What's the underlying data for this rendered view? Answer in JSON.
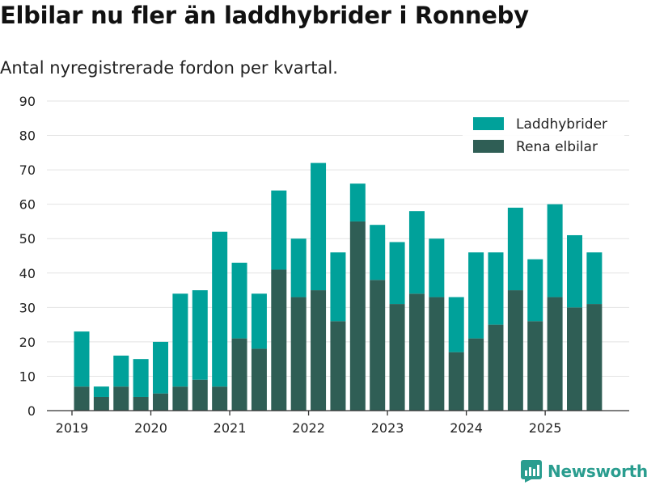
{
  "title": "Elbilar nu fler än laddhybrider i Ronneby",
  "subtitle": "Antal nyregistrerade fordon per kvartal.",
  "brand": "Newsworthy",
  "colors": {
    "laddhybrider": "#00a19a",
    "rena_elbilar": "#2f5e55",
    "grid": "#e3e3e3",
    "axis": "#333333",
    "brand": "#2a9d8f"
  },
  "chart_data": {
    "type": "bar",
    "stacked": true,
    "title": "Elbilar nu fler än laddhybrider i Ronneby",
    "subtitle": "Antal nyregistrerade fordon per kvartal.",
    "xlabel": "",
    "ylabel": "",
    "ylim": [
      0,
      90
    ],
    "yticks": [
      0,
      10,
      20,
      30,
      40,
      50,
      60,
      70,
      80,
      90
    ],
    "xticks": [
      "2019",
      "2020",
      "2021",
      "2022",
      "2023",
      "2024",
      "2025"
    ],
    "grid": true,
    "legend_position": "top-right",
    "categories": [
      "2019 Q1",
      "2019 Q2",
      "2019 Q3",
      "2019 Q4",
      "2020 Q1",
      "2020 Q2",
      "2020 Q3",
      "2020 Q4",
      "2021 Q1",
      "2021 Q2",
      "2021 Q3",
      "2021 Q4",
      "2022 Q1",
      "2022 Q2",
      "2022 Q3",
      "2022 Q4",
      "2023 Q1",
      "2023 Q2",
      "2023 Q3",
      "2023 Q4",
      "2024 Q1",
      "2024 Q2",
      "2024 Q3",
      "2024 Q4",
      "2025 Q1",
      "2025 Q2",
      "2025 Q3"
    ],
    "series": [
      {
        "name": "Rena elbilar",
        "values": [
          7,
          4,
          7,
          4,
          5,
          7,
          9,
          7,
          21,
          18,
          41,
          33,
          35,
          26,
          55,
          38,
          31,
          34,
          33,
          17,
          21,
          25,
          35,
          26,
          33,
          30,
          31
        ]
      },
      {
        "name": "Laddhybrider",
        "values": [
          16,
          3,
          9,
          11,
          15,
          27,
          26,
          45,
          22,
          16,
          23,
          17,
          37,
          20,
          11,
          16,
          18,
          24,
          17,
          16,
          25,
          21,
          24,
          18,
          27,
          21,
          15
        ]
      }
    ]
  }
}
